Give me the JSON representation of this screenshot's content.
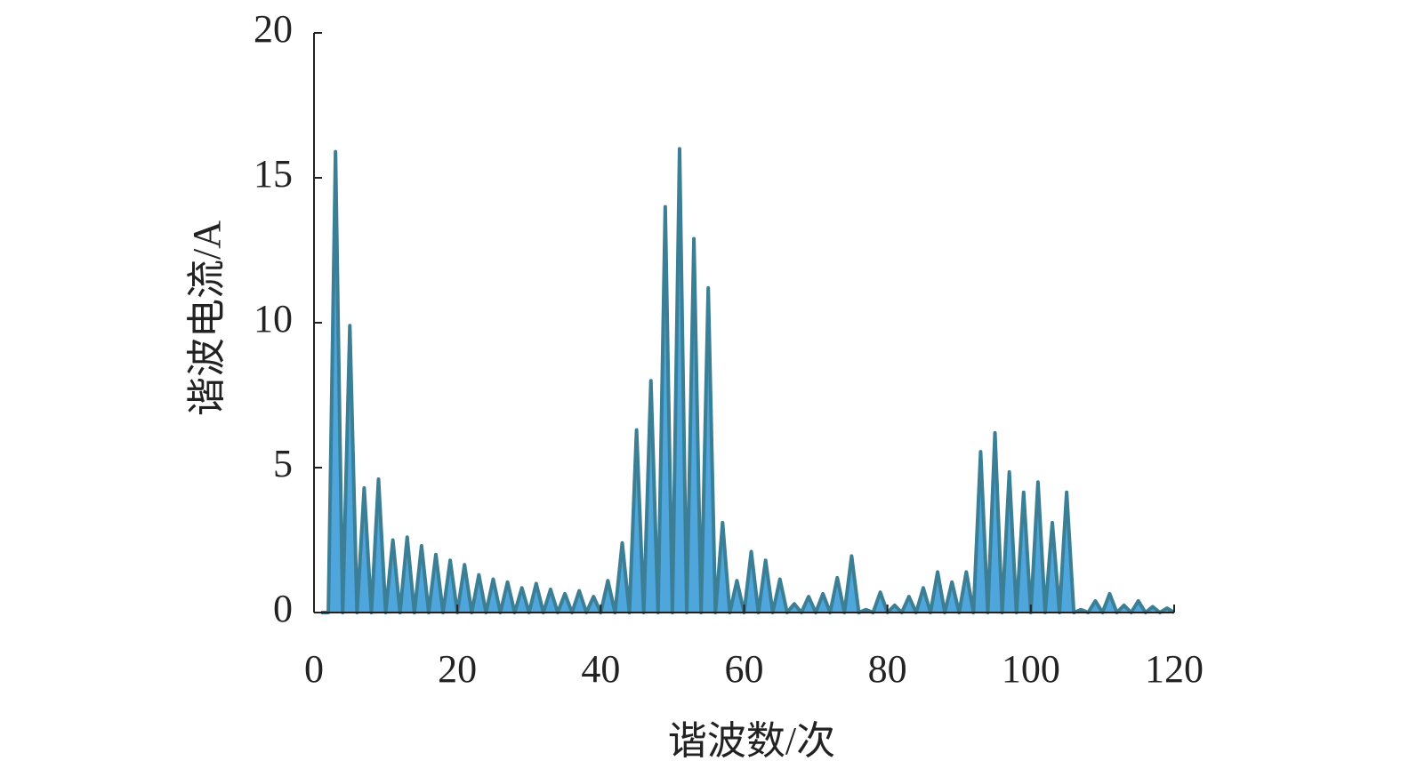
{
  "chart_data": {
    "type": "area",
    "xlabel": "谐波数/次",
    "ylabel": "谐波电流/A",
    "fill_color": "#4ea6dd",
    "line_color": "#3a7f95",
    "xlim": [
      0,
      120
    ],
    "xticks": [
      0,
      20,
      40,
      60,
      80,
      100,
      120
    ],
    "ylim": [
      0,
      20
    ],
    "yticks": [
      0,
      5,
      10,
      15,
      20
    ],
    "x": [
      1,
      2,
      3,
      4,
      5,
      6,
      7,
      8,
      9,
      10,
      11,
      12,
      13,
      14,
      15,
      16,
      17,
      18,
      19,
      20,
      21,
      22,
      23,
      24,
      25,
      26,
      27,
      28,
      29,
      30,
      31,
      32,
      33,
      34,
      35,
      36,
      37,
      38,
      39,
      40,
      41,
      42,
      43,
      44,
      45,
      46,
      47,
      48,
      49,
      50,
      51,
      52,
      53,
      54,
      55,
      56,
      57,
      58,
      59,
      60,
      61,
      62,
      63,
      64,
      65,
      66,
      67,
      68,
      69,
      70,
      71,
      72,
      73,
      74,
      75,
      76,
      77,
      78,
      79,
      80,
      81,
      82,
      83,
      84,
      85,
      86,
      87,
      88,
      89,
      90,
      91,
      92,
      93,
      94,
      95,
      96,
      97,
      98,
      99,
      100,
      101,
      102,
      103,
      104,
      105,
      106,
      107,
      108,
      109,
      110,
      111,
      112,
      113,
      114,
      115,
      116,
      117,
      118,
      119,
      120
    ],
    "values": [
      0,
      0,
      15.9,
      0,
      9.9,
      0,
      4.3,
      0,
      4.6,
      0,
      2.5,
      0,
      2.6,
      0,
      2.3,
      0,
      2.0,
      0,
      1.8,
      0,
      1.65,
      0,
      1.3,
      0,
      1.15,
      0,
      1.05,
      0,
      0.85,
      0,
      1.0,
      0,
      0.8,
      0,
      0.65,
      0,
      0.75,
      0,
      0.55,
      0,
      1.1,
      0,
      2.4,
      0,
      6.3,
      0,
      8.0,
      0,
      14.0,
      0,
      16.0,
      0,
      12.9,
      0,
      11.2,
      0,
      3.1,
      0,
      1.1,
      0,
      2.1,
      0,
      1.8,
      0,
      1.15,
      0,
      0.3,
      0,
      0.55,
      0,
      0.65,
      0,
      1.2,
      0,
      1.95,
      0,
      0.1,
      0,
      0.7,
      0,
      0.25,
      0,
      0.55,
      0,
      0.85,
      0,
      1.4,
      0,
      1.05,
      0,
      1.4,
      0,
      5.55,
      0,
      6.2,
      0,
      4.85,
      0,
      4.15,
      0,
      4.5,
      0,
      3.1,
      0,
      4.15,
      0,
      0.1,
      0,
      0.4,
      0,
      0.65,
      0,
      0.25,
      0,
      0.4,
      0,
      0.2,
      0,
      0.15,
      0
    ]
  }
}
